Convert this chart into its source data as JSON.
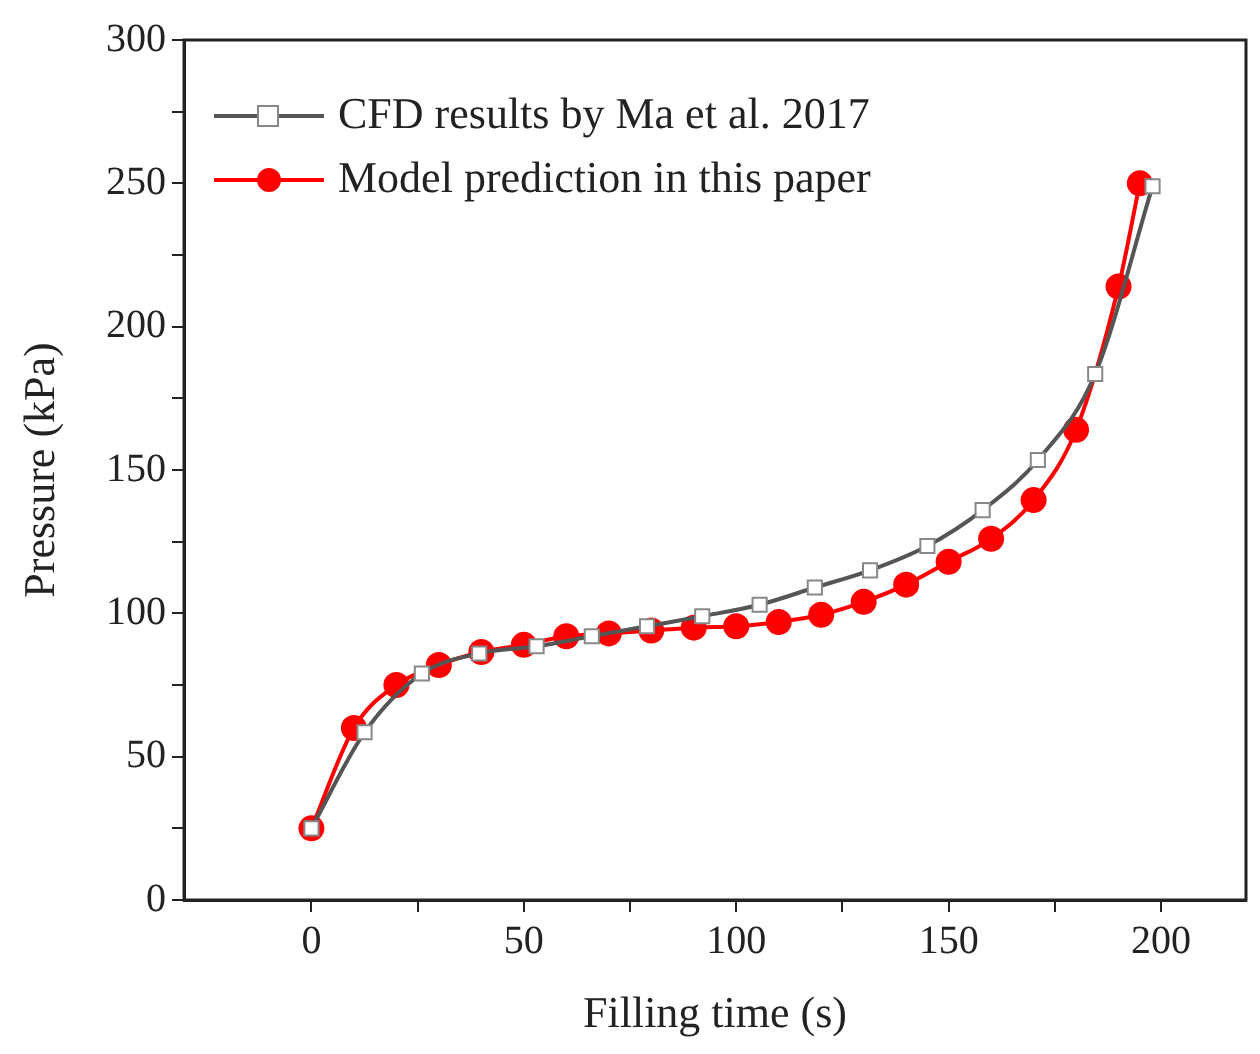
{
  "chart_data": {
    "type": "line",
    "xlabel": "Filling time (s)",
    "ylabel": "Pressure (kPa)",
    "xlim": [
      -30,
      220
    ],
    "xticks": [
      0,
      {
        "value": 25,
        "label": null
      },
      50,
      {
        "value": 75,
        "label": null
      },
      100,
      {
        "value": 125,
        "label": null
      },
      150,
      {
        "value": 175,
        "label": null
      },
      200
    ],
    "ylim": [
      0,
      300
    ],
    "yticks": [
      0,
      {
        "value": 25,
        "label": null
      },
      50,
      {
        "value": 75,
        "label": null
      },
      100,
      {
        "value": 125,
        "label": null
      },
      150,
      {
        "value": 175,
        "label": null
      },
      200,
      {
        "value": 225,
        "label": null
      },
      250,
      {
        "value": 275,
        "label": null
      },
      300
    ],
    "grid": false,
    "legend": "top left",
    "line_style": "solid",
    "series": [
      {
        "name": "CFD results by Ma et al. 2017",
        "color": "#555555",
        "marker": "square",
        "x": [
          0,
          12.5,
          26,
          39.5,
          53,
          66,
          79,
          92,
          105.5,
          118.5,
          131.5,
          145,
          158,
          171,
          184.5,
          198
        ],
        "values": [
          25,
          58.5,
          79,
          86,
          88.5,
          92,
          95.5,
          99,
          103,
          109,
          115,
          123.5,
          136,
          153.5,
          183.5,
          249
        ]
      },
      {
        "name": "Model prediction in this paper",
        "color": "#ff0000",
        "marker": "circle",
        "x": [
          0,
          10,
          20,
          30,
          40,
          50,
          60,
          70,
          80,
          90,
          100,
          110,
          120,
          130,
          140,
          150,
          160,
          170,
          180,
          190,
          195
        ],
        "values": [
          25,
          60,
          75,
          82,
          86.5,
          89,
          92,
          93,
          94,
          95,
          95.5,
          97,
          99.5,
          104,
          110,
          118,
          126,
          139.5,
          164,
          214,
          250
        ]
      }
    ]
  }
}
